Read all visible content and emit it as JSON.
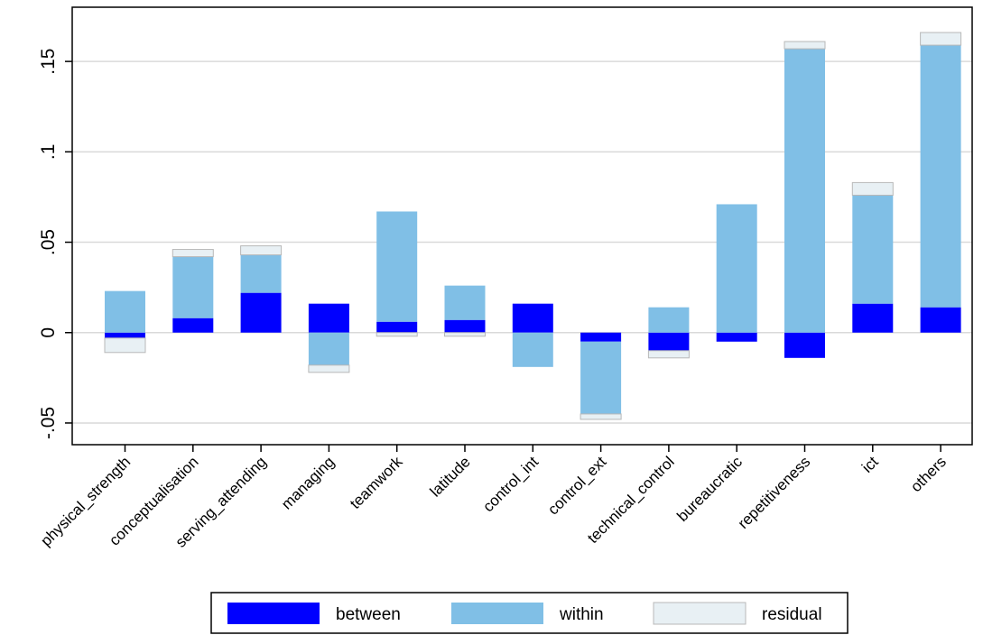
{
  "chart_data": {
    "type": "bar",
    "stacked": true,
    "categories": [
      "physical_strength",
      "conceptualisation",
      "serving_attending",
      "managing",
      "teamwork",
      "latitude",
      "control_int",
      "control_ext",
      "technical_control",
      "bureaucratic",
      "repetitiveness",
      "ict",
      "others"
    ],
    "series": [
      {
        "name": "between",
        "color": "#0000ff",
        "values": [
          -0.003,
          0.008,
          0.022,
          0.016,
          0.006,
          0.007,
          0.016,
          -0.005,
          -0.01,
          -0.005,
          -0.014,
          0.016,
          0.014
        ]
      },
      {
        "name": "within",
        "color": "#80bfe6",
        "values": [
          0.023,
          0.034,
          0.021,
          -0.018,
          0.061,
          0.019,
          -0.019,
          -0.04,
          0.014,
          0.071,
          0.157,
          0.06,
          0.145
        ]
      },
      {
        "name": "residual",
        "color": "#e8f0f4",
        "values": [
          -0.008,
          0.004,
          0.005,
          -0.004,
          -0.002,
          -0.002,
          0.0,
          -0.003,
          -0.004,
          0.0,
          0.004,
          0.007,
          0.007
        ]
      }
    ],
    "yticks": [
      -0.05,
      0,
      0.05,
      0.1,
      0.15
    ],
    "ytick_labels": [
      "-.05",
      "0",
      ".05",
      ".1",
      ".15"
    ],
    "ylim": [
      -0.062,
      0.18
    ],
    "grid": true,
    "legend_position": "bottom",
    "title": "",
    "xlabel": "",
    "ylabel": ""
  }
}
